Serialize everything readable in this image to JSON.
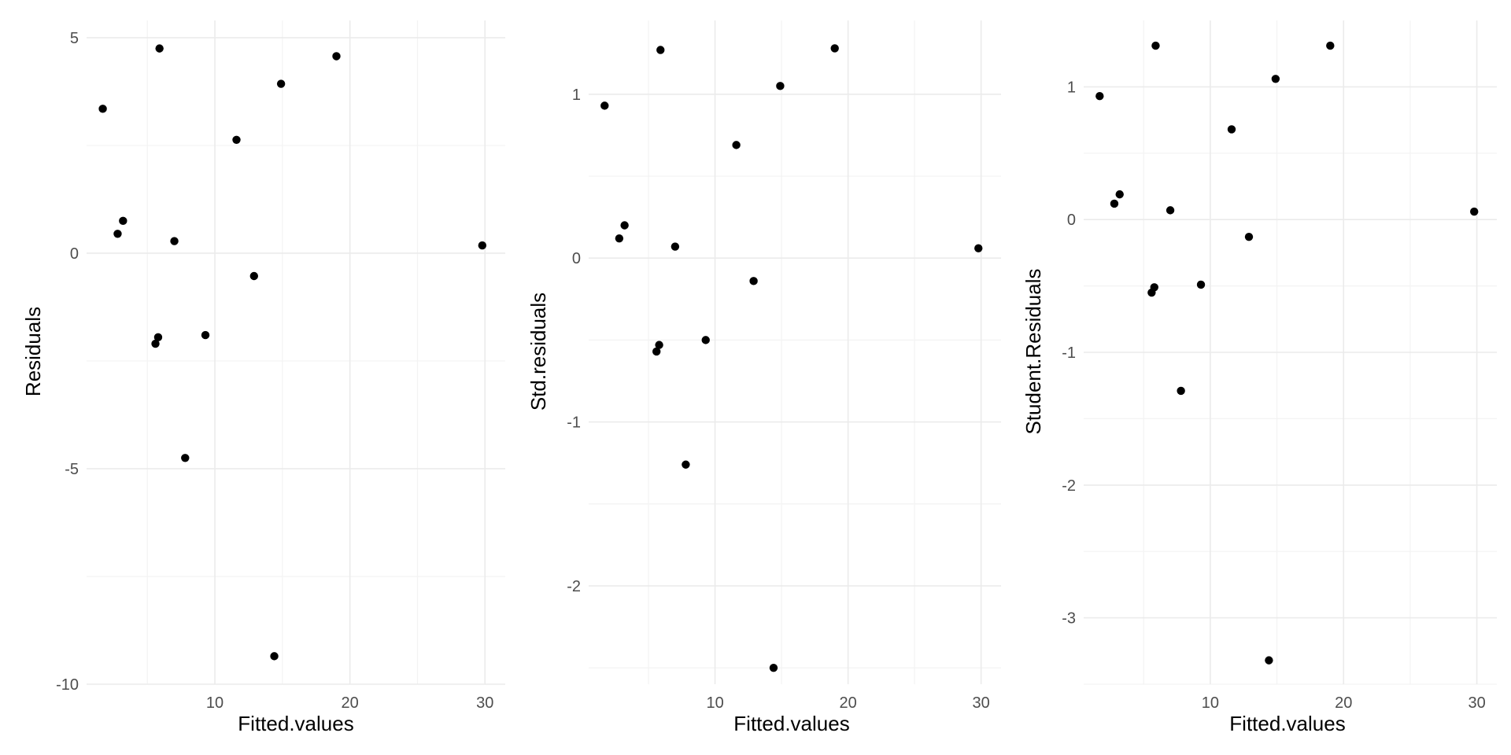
{
  "chart_data": [
    {
      "type": "scatter",
      "xlabel": "Fitted.values",
      "ylabel": "Residuals",
      "xlim": [
        0.5,
        31.5
      ],
      "ylim": [
        -10,
        5.4
      ],
      "x_ticks": [
        10,
        20,
        30
      ],
      "x_minor_ticks": [
        5,
        15,
        25
      ],
      "y_ticks": [
        -10,
        -5,
        0,
        5
      ],
      "y_tick_labels": [
        "-10",
        "-5",
        "0",
        "5"
      ],
      "y_minor_ticks": [
        -7.5,
        -2.5,
        2.5
      ],
      "grid": true,
      "points": [
        {
          "x": 1.7,
          "y": 3.35
        },
        {
          "x": 2.8,
          "y": 0.45
        },
        {
          "x": 3.2,
          "y": 0.75
        },
        {
          "x": 5.6,
          "y": -2.1
        },
        {
          "x": 5.8,
          "y": -1.95
        },
        {
          "x": 5.9,
          "y": 4.75
        },
        {
          "x": 7.0,
          "y": 0.28
        },
        {
          "x": 7.8,
          "y": -4.75
        },
        {
          "x": 9.3,
          "y": -1.9
        },
        {
          "x": 11.6,
          "y": 2.63
        },
        {
          "x": 12.9,
          "y": -0.53
        },
        {
          "x": 14.4,
          "y": -9.35
        },
        {
          "x": 14.9,
          "y": 3.93
        },
        {
          "x": 19.0,
          "y": 4.57
        },
        {
          "x": 29.8,
          "y": 0.18
        }
      ]
    },
    {
      "type": "scatter",
      "xlabel": "Fitted.values",
      "ylabel": "Std.residuals",
      "xlim": [
        0.5,
        31.5
      ],
      "ylim": [
        -2.6,
        1.45
      ],
      "x_ticks": [
        10,
        20,
        30
      ],
      "x_minor_ticks": [
        5,
        15,
        25
      ],
      "y_ticks": [
        -2,
        -1,
        0,
        1
      ],
      "y_tick_labels": [
        "-2",
        "-1",
        "0",
        "1"
      ],
      "y_minor_ticks": [
        -2.5,
        -1.5,
        -0.5,
        0.5
      ],
      "grid": true,
      "points": [
        {
          "x": 1.7,
          "y": 0.93
        },
        {
          "x": 2.8,
          "y": 0.12
        },
        {
          "x": 3.2,
          "y": 0.2
        },
        {
          "x": 5.6,
          "y": -0.57
        },
        {
          "x": 5.8,
          "y": -0.53
        },
        {
          "x": 5.9,
          "y": 1.27
        },
        {
          "x": 7.0,
          "y": 0.07
        },
        {
          "x": 7.8,
          "y": -1.26
        },
        {
          "x": 9.3,
          "y": -0.5
        },
        {
          "x": 11.6,
          "y": 0.69
        },
        {
          "x": 12.9,
          "y": -0.14
        },
        {
          "x": 14.4,
          "y": -2.5
        },
        {
          "x": 14.9,
          "y": 1.05
        },
        {
          "x": 19.0,
          "y": 1.28
        },
        {
          "x": 29.8,
          "y": 0.06
        }
      ]
    },
    {
      "type": "scatter",
      "xlabel": "Fitted.values",
      "ylabel": "Student.Residuals",
      "xlim": [
        0.5,
        31.5
      ],
      "ylim": [
        -3.5,
        1.5
      ],
      "x_ticks": [
        10,
        20,
        30
      ],
      "x_minor_ticks": [
        5,
        15,
        25
      ],
      "y_ticks": [
        -3,
        -2,
        -1,
        0,
        1
      ],
      "y_tick_labels": [
        "-3",
        "-2",
        "-1",
        "0",
        "1"
      ],
      "y_minor_ticks": [
        -3.5,
        -2.5,
        -1.5,
        -0.5,
        0.5
      ],
      "grid": true,
      "points": [
        {
          "x": 1.7,
          "y": 0.93
        },
        {
          "x": 2.8,
          "y": 0.12
        },
        {
          "x": 3.2,
          "y": 0.19
        },
        {
          "x": 5.6,
          "y": -0.55
        },
        {
          "x": 5.8,
          "y": -0.51
        },
        {
          "x": 5.9,
          "y": 1.31
        },
        {
          "x": 7.0,
          "y": 0.07
        },
        {
          "x": 7.8,
          "y": -1.29
        },
        {
          "x": 9.3,
          "y": -0.49
        },
        {
          "x": 11.6,
          "y": 0.68
        },
        {
          "x": 12.9,
          "y": -0.13
        },
        {
          "x": 14.4,
          "y": -3.32
        },
        {
          "x": 14.9,
          "y": 1.06
        },
        {
          "x": 19.0,
          "y": 1.31
        },
        {
          "x": 29.8,
          "y": 0.06
        }
      ]
    }
  ]
}
